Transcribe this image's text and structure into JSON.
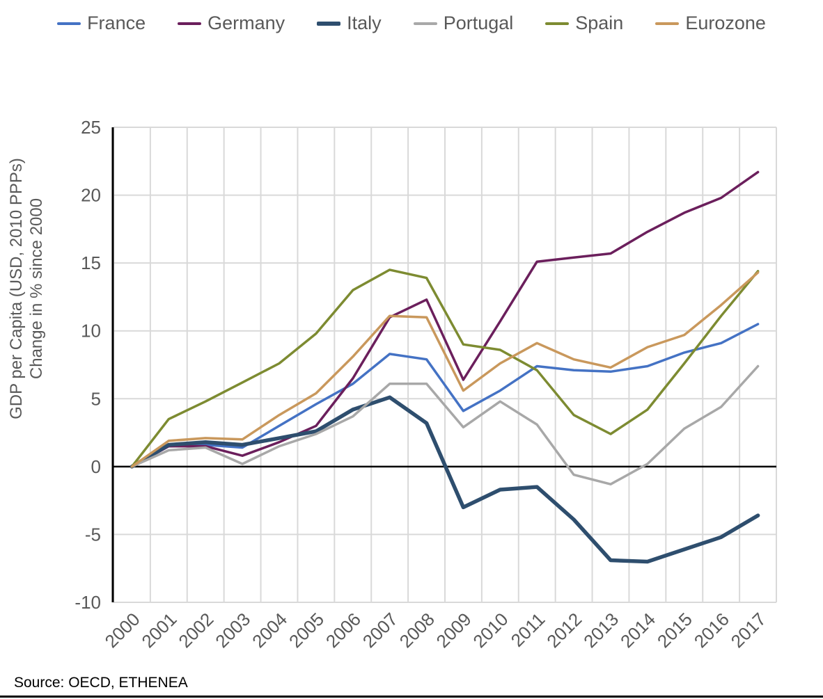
{
  "chart_data": {
    "type": "line",
    "x": [
      "2000",
      "2001",
      "2002",
      "2003",
      "2004",
      "2005",
      "2006",
      "2007",
      "2008",
      "2009",
      "2010",
      "2011",
      "2012",
      "2013",
      "2014",
      "2015",
      "2016",
      "2017"
    ],
    "series": [
      {
        "name": "France",
        "color": "#4472C4",
        "line_width": 3.5,
        "values": [
          0,
          1.5,
          1.6,
          1.4,
          3.0,
          4.6,
          6.1,
          8.3,
          7.9,
          4.1,
          5.6,
          7.4,
          7.1,
          7.0,
          7.4,
          8.4,
          9.1,
          10.5
        ]
      },
      {
        "name": "Germany",
        "color": "#6B1F5C",
        "line_width": 3.5,
        "values": [
          0,
          1.5,
          1.5,
          0.8,
          1.8,
          3.0,
          6.5,
          11.0,
          12.3,
          6.4,
          10.7,
          15.1,
          15.4,
          15.7,
          17.3,
          18.7,
          19.8,
          21.7
        ]
      },
      {
        "name": "Italy",
        "color": "#2E4E6E",
        "line_width": 5.5,
        "values": [
          0,
          1.6,
          1.8,
          1.6,
          2.1,
          2.6,
          4.2,
          5.1,
          3.2,
          -3.0,
          -1.7,
          -1.5,
          -3.9,
          -6.9,
          -7.0,
          -6.1,
          -5.2,
          -3.6
        ]
      },
      {
        "name": "Portugal",
        "color": "#A8A8A8",
        "line_width": 3.5,
        "values": [
          0,
          1.2,
          1.4,
          0.2,
          1.5,
          2.4,
          3.7,
          6.1,
          6.1,
          2.9,
          4.8,
          3.1,
          -0.6,
          -1.3,
          0.2,
          2.8,
          4.4,
          7.4
        ]
      },
      {
        "name": "Spain",
        "color": "#7D8B31",
        "line_width": 3.5,
        "values": [
          0,
          3.5,
          4.8,
          6.2,
          7.6,
          9.8,
          13.0,
          14.5,
          13.9,
          9.0,
          8.6,
          7.1,
          3.8,
          2.4,
          4.2,
          7.6,
          11.1,
          14.4
        ]
      },
      {
        "name": "Eurozone",
        "color": "#C9985C",
        "line_width": 3.5,
        "values": [
          0,
          1.9,
          2.1,
          2.0,
          3.8,
          5.4,
          8.1,
          11.1,
          11.0,
          5.6,
          7.6,
          9.1,
          7.9,
          7.3,
          8.8,
          9.7,
          11.9,
          14.3
        ]
      }
    ],
    "title": "",
    "xlabel": "",
    "ylabel_line1": "GDP per Capita (USD, 2010 PPPs)",
    "ylabel_line2": "Change in % since 2000",
    "ylim": [
      -10,
      25
    ],
    "yticks": [
      25,
      20,
      15,
      10,
      5,
      0,
      -5,
      -10
    ],
    "grid": true,
    "legend_position": "top",
    "zero_line_at": 0
  },
  "style_colors": {
    "tick_text": "#595959",
    "grid": "#D9D9D9",
    "axis": "#000000"
  },
  "source": {
    "text": "Source: OECD, ETHENEA"
  }
}
